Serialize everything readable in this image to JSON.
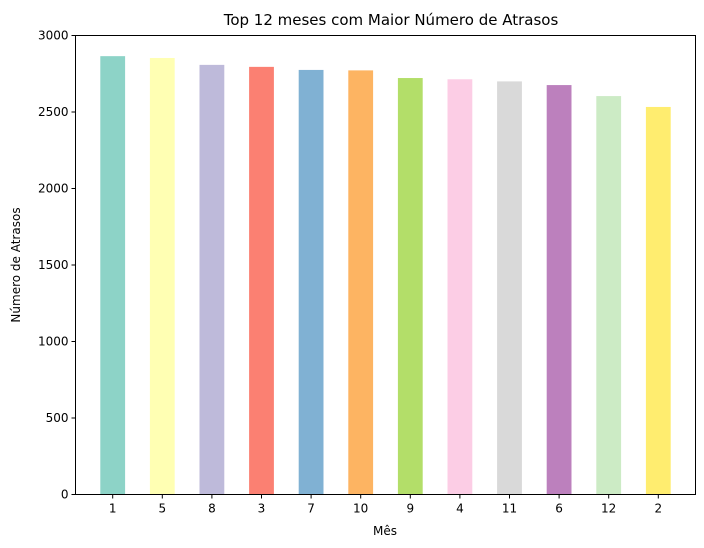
{
  "chart_data": {
    "type": "bar",
    "title": "Top 12 meses com Maior Número de Atrasos",
    "xlabel": "Mês",
    "ylabel": "Número de Atrasos",
    "ylim": [
      0,
      3000
    ],
    "yticks": [
      "0",
      "500",
      "1000",
      "1500",
      "2000",
      "2500",
      "3000"
    ],
    "grid": false,
    "categories": [
      "1",
      "5",
      "8",
      "3",
      "7",
      "10",
      "9",
      "4",
      "11",
      "6",
      "12",
      "2"
    ],
    "values": [
      2865,
      2853,
      2808,
      2795,
      2775,
      2772,
      2722,
      2714,
      2700,
      2676,
      2604,
      2533
    ],
    "colors": [
      "#8dd3c7",
      "#ffffb3",
      "#bebada",
      "#fb8072",
      "#80b1d3",
      "#fdb462",
      "#b3de69",
      "#fccde5",
      "#d9d9d9",
      "#bc80bd",
      "#ccebc5",
      "#ffed6f"
    ]
  }
}
